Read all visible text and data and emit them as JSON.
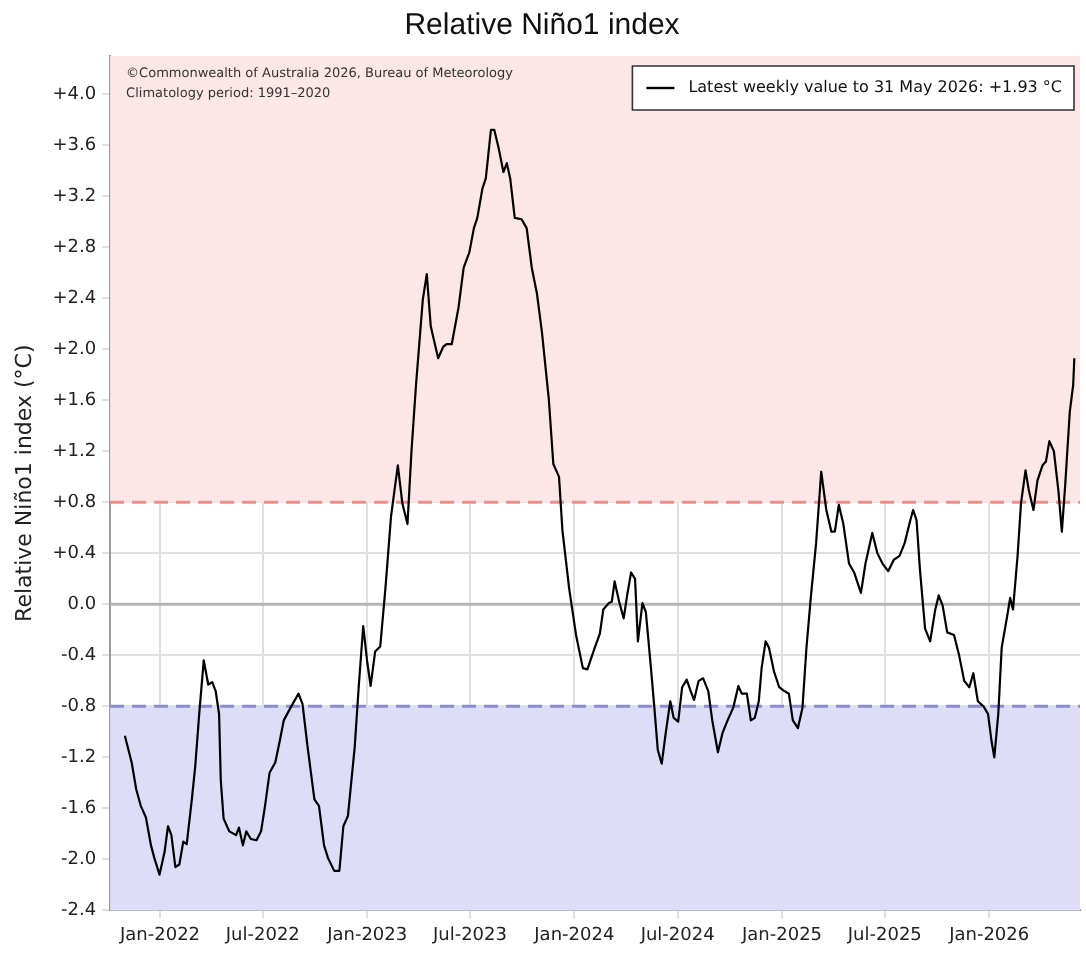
{
  "chart_data": {
    "type": "line",
    "title": "Relative Niño1 index",
    "ylabel": "Relative Niño1 index (°C)",
    "annotations": [
      "©Commonwealth of Australia 2026, Bureau of Meteorology",
      "Climatology period: 1991–2020"
    ],
    "x": [
      "2021-10-31",
      "2021-11-12",
      "2021-11-20",
      "2021-11-28",
      "2021-12-07",
      "2021-12-16",
      "2021-12-22",
      "2021-12-31",
      "2022-01-09",
      "2022-01-15",
      "2022-01-21",
      "2022-01-28",
      "2022-02-04",
      "2022-02-11",
      "2022-02-17",
      "2022-02-26",
      "2022-03-04",
      "2022-03-11",
      "2022-03-19",
      "2022-03-27",
      "2022-04-03",
      "2022-04-09",
      "2022-04-15",
      "2022-04-18",
      "2022-04-23",
      "2022-05-03",
      "2022-05-15",
      "2022-05-20",
      "2022-05-27",
      "2022-06-02",
      "2022-06-10",
      "2022-06-20",
      "2022-06-28",
      "2022-07-05",
      "2022-07-13",
      "2022-07-23",
      "2022-07-31",
      "2022-08-07",
      "2022-08-19",
      "2022-09-02",
      "2022-09-09",
      "2022-09-18",
      "2022-09-30",
      "2022-10-08",
      "2022-10-17",
      "2022-10-24",
      "2022-11-04",
      "2022-11-13",
      "2022-11-20",
      "2022-11-28",
      "2022-12-10",
      "2022-12-17",
      "2022-12-25",
      "2023-01-01",
      "2023-01-07",
      "2023-01-15",
      "2023-01-24",
      "2023-02-02",
      "2023-02-12",
      "2023-02-24",
      "2023-03-04",
      "2023-03-13",
      "2023-03-20",
      "2023-03-28",
      "2023-04-09",
      "2023-04-16",
      "2023-04-23",
      "2023-05-06",
      "2023-05-15",
      "2023-05-21",
      "2023-05-30",
      "2023-06-11",
      "2023-06-20",
      "2023-06-30",
      "2023-07-08",
      "2023-07-14",
      "2023-07-23",
      "2023-07-29",
      "2023-08-07",
      "2023-08-13",
      "2023-08-21",
      "2023-08-29",
      "2023-09-04",
      "2023-09-10",
      "2023-09-18",
      "2023-09-30",
      "2023-10-09",
      "2023-10-18",
      "2023-10-27",
      "2023-11-05",
      "2023-11-17",
      "2023-11-25",
      "2023-12-05",
      "2023-12-11",
      "2023-12-23",
      "2024-01-04",
      "2024-01-16",
      "2024-01-24",
      "2024-02-06",
      "2024-02-15",
      "2024-02-21",
      "2024-03-02",
      "2024-03-07",
      "2024-03-12",
      "2024-03-20",
      "2024-03-28",
      "2024-04-03",
      "2024-04-10",
      "2024-04-17",
      "2024-04-22",
      "2024-04-30",
      "2024-05-06",
      "2024-05-15",
      "2024-05-21",
      "2024-05-27",
      "2024-06-03",
      "2024-06-10",
      "2024-06-18",
      "2024-06-24",
      "2024-07-02",
      "2024-07-09",
      "2024-07-17",
      "2024-07-24",
      "2024-07-30",
      "2024-08-07",
      "2024-08-15",
      "2024-08-24",
      "2024-08-31",
      "2024-09-10",
      "2024-09-18",
      "2024-09-27",
      "2024-10-07",
      "2024-10-16",
      "2024-10-22",
      "2024-10-31",
      "2024-11-07",
      "2024-11-14",
      "2024-11-21",
      "2024-11-26",
      "2024-12-03",
      "2024-12-09",
      "2024-12-18",
      "2024-12-27",
      "2025-01-05",
      "2025-01-13",
      "2025-01-20",
      "2025-01-29",
      "2025-02-06",
      "2025-02-13",
      "2025-02-21",
      "2025-03-02",
      "2025-03-11",
      "2025-03-20",
      "2025-03-29",
      "2025-04-04",
      "2025-04-11",
      "2025-04-19",
      "2025-04-29",
      "2025-05-08",
      "2025-05-20",
      "2025-05-28",
      "2025-06-09",
      "2025-06-18",
      "2025-06-27",
      "2025-07-07",
      "2025-07-17",
      "2025-07-27",
      "2025-08-05",
      "2025-08-15",
      "2025-08-20",
      "2025-08-26",
      "2025-09-01",
      "2025-09-10",
      "2025-09-19",
      "2025-09-28",
      "2025-10-04",
      "2025-10-11",
      "2025-10-19",
      "2025-10-31",
      "2025-11-09",
      "2025-11-18",
      "2025-11-27",
      "2025-12-04",
      "2025-12-12",
      "2025-12-22",
      "2025-12-30",
      "2026-01-05",
      "2026-01-10",
      "2026-01-17",
      "2026-01-23",
      "2026-02-01",
      "2026-02-07",
      "2026-02-12",
      "2026-02-20",
      "2026-02-26",
      "2026-03-06",
      "2026-03-12",
      "2026-03-20",
      "2026-03-27",
      "2026-04-05",
      "2026-04-11",
      "2026-04-17",
      "2026-04-25",
      "2026-05-03",
      "2026-05-09",
      "2026-05-15",
      "2026-05-23",
      "2026-05-29",
      "2026-05-31"
    ],
    "series": [
      {
        "name": "Latest weekly value to 31 May 2026: +1.93 °C",
        "color": "#000000",
        "values": [
          -1.03,
          -1.24,
          -1.45,
          -1.58,
          -1.67,
          -1.89,
          -1.99,
          -2.12,
          -1.94,
          -1.74,
          -1.81,
          -2.06,
          -2.04,
          -1.86,
          -1.88,
          -1.53,
          -1.27,
          -0.86,
          -0.44,
          -0.63,
          -0.61,
          -0.68,
          -0.86,
          -1.38,
          -1.68,
          -1.78,
          -1.81,
          -1.75,
          -1.89,
          -1.78,
          -1.84,
          -1.85,
          -1.78,
          -1.58,
          -1.32,
          -1.24,
          -1.07,
          -0.91,
          -0.81,
          -0.7,
          -0.78,
          -1.12,
          -1.53,
          -1.58,
          -1.89,
          -1.99,
          -2.09,
          -2.09,
          -1.74,
          -1.66,
          -1.12,
          -0.65,
          -0.17,
          -0.45,
          -0.64,
          -0.37,
          -0.33,
          0.12,
          0.69,
          1.09,
          0.79,
          0.63,
          1.2,
          1.72,
          2.39,
          2.59,
          2.18,
          1.93,
          2.02,
          2.04,
          2.04,
          2.33,
          2.64,
          2.76,
          2.95,
          3.03,
          3.26,
          3.34,
          3.72,
          3.72,
          3.57,
          3.39,
          3.46,
          3.34,
          3.03,
          3.02,
          2.95,
          2.64,
          2.44,
          2.13,
          1.61,
          1.1,
          1.0,
          0.58,
          0.12,
          -0.24,
          -0.5,
          -0.51,
          -0.34,
          -0.23,
          -0.04,
          0.01,
          0.02,
          0.18,
          0.02,
          -0.11,
          0.07,
          0.25,
          0.2,
          -0.29,
          0.01,
          -0.06,
          -0.5,
          -0.81,
          -1.14,
          -1.25,
          -1.01,
          -0.76,
          -0.89,
          -0.92,
          -0.65,
          -0.59,
          -0.68,
          -0.75,
          -0.6,
          -0.58,
          -0.68,
          -0.91,
          -1.16,
          -1.01,
          -0.91,
          -0.81,
          -0.64,
          -0.7,
          -0.7,
          -0.91,
          -0.89,
          -0.76,
          -0.5,
          -0.29,
          -0.34,
          -0.53,
          -0.65,
          -0.68,
          -0.7,
          -0.91,
          -0.97,
          -0.81,
          -0.34,
          0.07,
          0.48,
          1.04,
          0.74,
          0.57,
          0.57,
          0.78,
          0.63,
          0.32,
          0.25,
          0.09,
          0.32,
          0.56,
          0.4,
          0.32,
          0.26,
          0.35,
          0.38,
          0.48,
          0.66,
          0.74,
          0.66,
          0.27,
          -0.19,
          -0.29,
          -0.04,
          0.07,
          -0.01,
          -0.22,
          -0.24,
          -0.4,
          -0.6,
          -0.65,
          -0.54,
          -0.76,
          -0.8,
          -0.86,
          -1.07,
          -1.2,
          -0.86,
          -0.34,
          -0.11,
          0.05,
          -0.04,
          0.38,
          0.79,
          1.05,
          0.89,
          0.74,
          0.97,
          1.09,
          1.12,
          1.28,
          1.2,
          0.89,
          0.57,
          0.94,
          1.51,
          1.72,
          1.93
        ]
      }
    ],
    "xlim": [
      "2021-10-05",
      "2026-06-10"
    ],
    "xticks": [
      {
        "value": "2022-01-01",
        "label": "Jan-2022"
      },
      {
        "value": "2022-07-01",
        "label": "Jul-2022"
      },
      {
        "value": "2023-01-01",
        "label": "Jan-2023"
      },
      {
        "value": "2023-07-01",
        "label": "Jul-2023"
      },
      {
        "value": "2024-01-01",
        "label": "Jan-2024"
      },
      {
        "value": "2024-07-01",
        "label": "Jul-2024"
      },
      {
        "value": "2025-01-01",
        "label": "Jan-2025"
      },
      {
        "value": "2025-07-01",
        "label": "Jul-2025"
      },
      {
        "value": "2026-01-01",
        "label": "Jan-2026"
      }
    ],
    "ylim": [
      -2.4,
      4.3
    ],
    "yticks": [
      {
        "value": -2.4,
        "label": "-2.4"
      },
      {
        "value": -2.0,
        "label": "-2.0"
      },
      {
        "value": -1.6,
        "label": "-1.6"
      },
      {
        "value": -1.2,
        "label": "-1.2"
      },
      {
        "value": -0.8,
        "label": "-0.8"
      },
      {
        "value": -0.4,
        "label": "-0.4"
      },
      {
        "value": 0,
        "label": "0.0"
      },
      {
        "value": 0.4,
        "label": "+0.4"
      },
      {
        "value": 0.8,
        "label": "+0.8"
      },
      {
        "value": 1.2,
        "label": "+1.2"
      },
      {
        "value": 1.6,
        "label": "+1.6"
      },
      {
        "value": 2.0,
        "label": "+2.0"
      },
      {
        "value": 2.4,
        "label": "+2.4"
      },
      {
        "value": 2.8,
        "label": "+2.8"
      },
      {
        "value": 3.2,
        "label": "+3.2"
      },
      {
        "value": 3.6,
        "label": "+3.6"
      },
      {
        "value": 4.0,
        "label": "+4.0"
      }
    ],
    "bands": [
      {
        "axis": "y",
        "from": 0.8,
        "to": 4.3,
        "color": "#fde6e6"
      },
      {
        "axis": "y",
        "from": -2.4,
        "to": -0.8,
        "color": "#dddcf9"
      }
    ],
    "ref_lines": [
      {
        "axis": "y",
        "value": 0.8,
        "color": "#f08c8c",
        "line_style": "dashed"
      },
      {
        "axis": "y",
        "value": -0.8,
        "color": "#8c8cd0",
        "line_style": "dashed"
      },
      {
        "axis": "y",
        "value": 0,
        "color": "#b4b4b4",
        "line_style": "solid"
      }
    ],
    "grid": true,
    "legend": "top right",
    "marker": "none",
    "line_style": "solid"
  }
}
